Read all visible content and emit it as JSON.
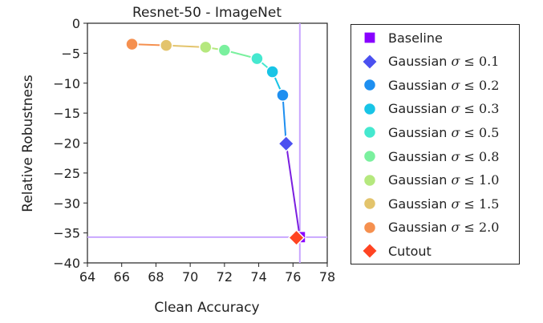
{
  "chart_data": {
    "type": "line",
    "title": "Resnet-50 - ImageNet",
    "xlabel": "Clean Accuracy",
    "ylabel": "Relative Robustness",
    "xlim": [
      64,
      78
    ],
    "ylim": [
      -40,
      0
    ],
    "xticks": [
      "64",
      "66",
      "68",
      "70",
      "72",
      "74",
      "76",
      "78"
    ],
    "yticks": [
      "0",
      "−5",
      "−10",
      "−15",
      "−20",
      "−25",
      "−30",
      "−35",
      "−40"
    ],
    "grid": false,
    "baseline": {
      "name": "Baseline",
      "x": 76.4,
      "y": -35.7,
      "color": "#8800ff",
      "reference_lines_color": "#c9a7ff"
    },
    "path_color": "#7a1ee0",
    "series": [
      {
        "name": "Gaussian σ ≤ 0.1",
        "sigma": "0.1",
        "marker": "diamond",
        "color": "#4b50f0",
        "x": 75.6,
        "y": -20.1
      },
      {
        "name": "Gaussian σ ≤ 0.2",
        "sigma": "0.2",
        "marker": "circle",
        "color": "#1e8ff0",
        "x": 75.4,
        "y": -12.0
      },
      {
        "name": "Gaussian σ ≤ 0.3",
        "sigma": "0.3",
        "marker": "circle",
        "color": "#18c4e6",
        "x": 74.8,
        "y": -8.1
      },
      {
        "name": "Gaussian σ ≤ 0.5",
        "sigma": "0.5",
        "marker": "circle",
        "color": "#45e8cf",
        "x": 73.9,
        "y": -5.9
      },
      {
        "name": "Gaussian σ ≤ 0.8",
        "sigma": "0.8",
        "marker": "circle",
        "color": "#7af09e",
        "x": 72.0,
        "y": -4.5
      },
      {
        "name": "Gaussian σ ≤ 1.0",
        "sigma": "1.0",
        "marker": "circle",
        "color": "#b5e87e",
        "x": 70.9,
        "y": -4.0
      },
      {
        "name": "Gaussian σ ≤ 1.5",
        "sigma": "1.5",
        "marker": "circle",
        "color": "#e3c46c",
        "x": 68.6,
        "y": -3.7
      },
      {
        "name": "Gaussian σ ≤ 2.0",
        "sigma": "2.0",
        "marker": "circle",
        "color": "#f5904f",
        "x": 66.6,
        "y": -3.5
      },
      {
        "name": "Cutout",
        "marker": "diamond",
        "color": "#ff4422",
        "x": 76.2,
        "y": -35.8
      }
    ]
  },
  "legend": {
    "items": [
      {
        "label": "Baseline",
        "marker": "square",
        "color": "#8800ff"
      },
      {
        "prefix": "Gaussian ",
        "sym": "σ",
        "op": " ≤ ",
        "num": "0.1",
        "marker": "diamond",
        "color": "#4b50f0"
      },
      {
        "prefix": "Gaussian ",
        "sym": "σ",
        "op": " ≤ ",
        "num": "0.2",
        "marker": "circle",
        "color": "#1e8ff0"
      },
      {
        "prefix": "Gaussian ",
        "sym": "σ",
        "op": " ≤ ",
        "num": "0.3",
        "marker": "circle",
        "color": "#18c4e6"
      },
      {
        "prefix": "Gaussian ",
        "sym": "σ",
        "op": " ≤ ",
        "num": "0.5",
        "marker": "circle",
        "color": "#45e8cf"
      },
      {
        "prefix": "Gaussian ",
        "sym": "σ",
        "op": " ≤ ",
        "num": "0.8",
        "marker": "circle",
        "color": "#7af09e"
      },
      {
        "prefix": "Gaussian ",
        "sym": "σ",
        "op": " ≤ ",
        "num": "1.0",
        "marker": "circle",
        "color": "#b5e87e"
      },
      {
        "prefix": "Gaussian ",
        "sym": "σ",
        "op": " ≤ ",
        "num": "1.5",
        "marker": "circle",
        "color": "#e3c46c"
      },
      {
        "prefix": "Gaussian ",
        "sym": "σ",
        "op": " ≤ ",
        "num": "2.0",
        "marker": "circle",
        "color": "#f5904f"
      },
      {
        "label": "Cutout",
        "marker": "diamond",
        "color": "#ff4422"
      }
    ]
  }
}
